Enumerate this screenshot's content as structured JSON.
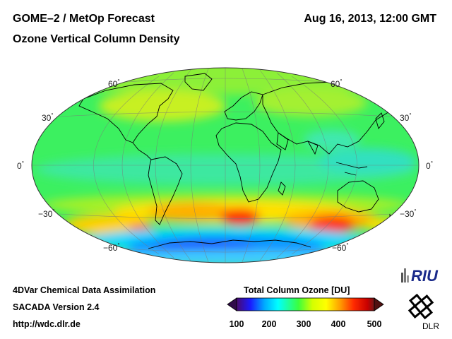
{
  "header": {
    "title": "GOME–2 / MetOp Forecast",
    "subtitle": "Ozone Vertical Column Density",
    "datetime": "Aug 16, 2013, 12:00 GMT"
  },
  "map": {
    "projection": "Hammer-Aitoff",
    "lat_labels": [
      "60",
      "30",
      "0",
      "−30",
      "−60"
    ],
    "degree_sign": "°"
  },
  "colorbar": {
    "title": "Total Column Ozone [DU]",
    "ticks": [
      "100",
      "200",
      "300",
      "400",
      "500"
    ],
    "min": 100,
    "max": 500,
    "colors": [
      "#4a0a6e",
      "#1a1aff",
      "#00a8ff",
      "#00ffff",
      "#3cff3c",
      "#d4ff00",
      "#ffff00",
      "#ffa000",
      "#ff2a00",
      "#c80000",
      "#701818"
    ]
  },
  "footer": {
    "line1": "4DVar Chemical Data Assimilation",
    "line2": "SACADA Version 2.4",
    "line3": "http://wdc.dlr.de"
  },
  "logos": {
    "riu": "RIU",
    "dlr": "DLR"
  }
}
